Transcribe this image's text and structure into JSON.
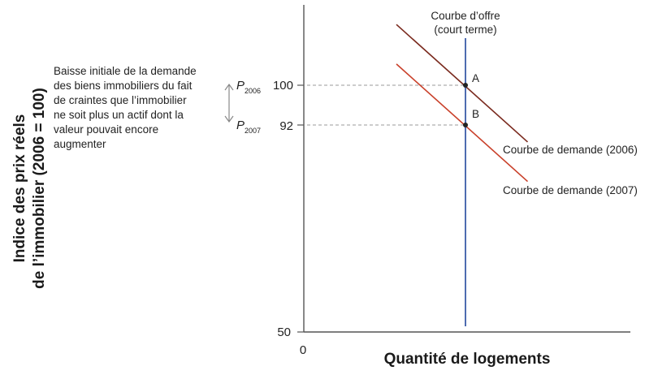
{
  "chart_data": {
    "type": "line",
    "title": "",
    "xlabel": "Quantité de logements",
    "ylabel_line1": "Indice des prix réels",
    "ylabel_line2": "de l’immobilier (2006 = 100)",
    "x_origin_label": "0",
    "y_ticks": [
      50,
      92,
      100
    ],
    "y_tick_labels": [
      "50",
      "92",
      "100"
    ],
    "ylim": [
      50,
      120
    ],
    "supply_label_line1": "Courbe d’offre",
    "supply_label_line2": "(court terme)",
    "series": [
      {
        "name": "Courbe de demande (2006)",
        "color": "#7a2a1e",
        "x": [
          -0.5,
          0,
          0.45
        ],
        "y": [
          112.3,
          100,
          88.5
        ]
      },
      {
        "name": "Courbe de demande (2007)",
        "color": "#c9402a",
        "x": [
          -0.5,
          0,
          0.45
        ],
        "y": [
          104.3,
          92,
          80.5
        ]
      }
    ],
    "supply_color": "#3a5ba8",
    "points": [
      {
        "label": "A",
        "x": 0,
        "y": 100
      },
      {
        "label": "B",
        "x": 0,
        "y": 92
      }
    ],
    "price_labels": [
      {
        "base": "P",
        "sub": "2006",
        "y": 100
      },
      {
        "base": "P",
        "sub": "2007",
        "y": 92
      }
    ],
    "annotation_lines": [
      "Baisse initiale de la demande",
      "des biens immobiliers du fait",
      "de craintes que l’immobilier",
      "ne soit plus un actif dont la",
      "valeur pouvait encore",
      "augmenter"
    ]
  }
}
